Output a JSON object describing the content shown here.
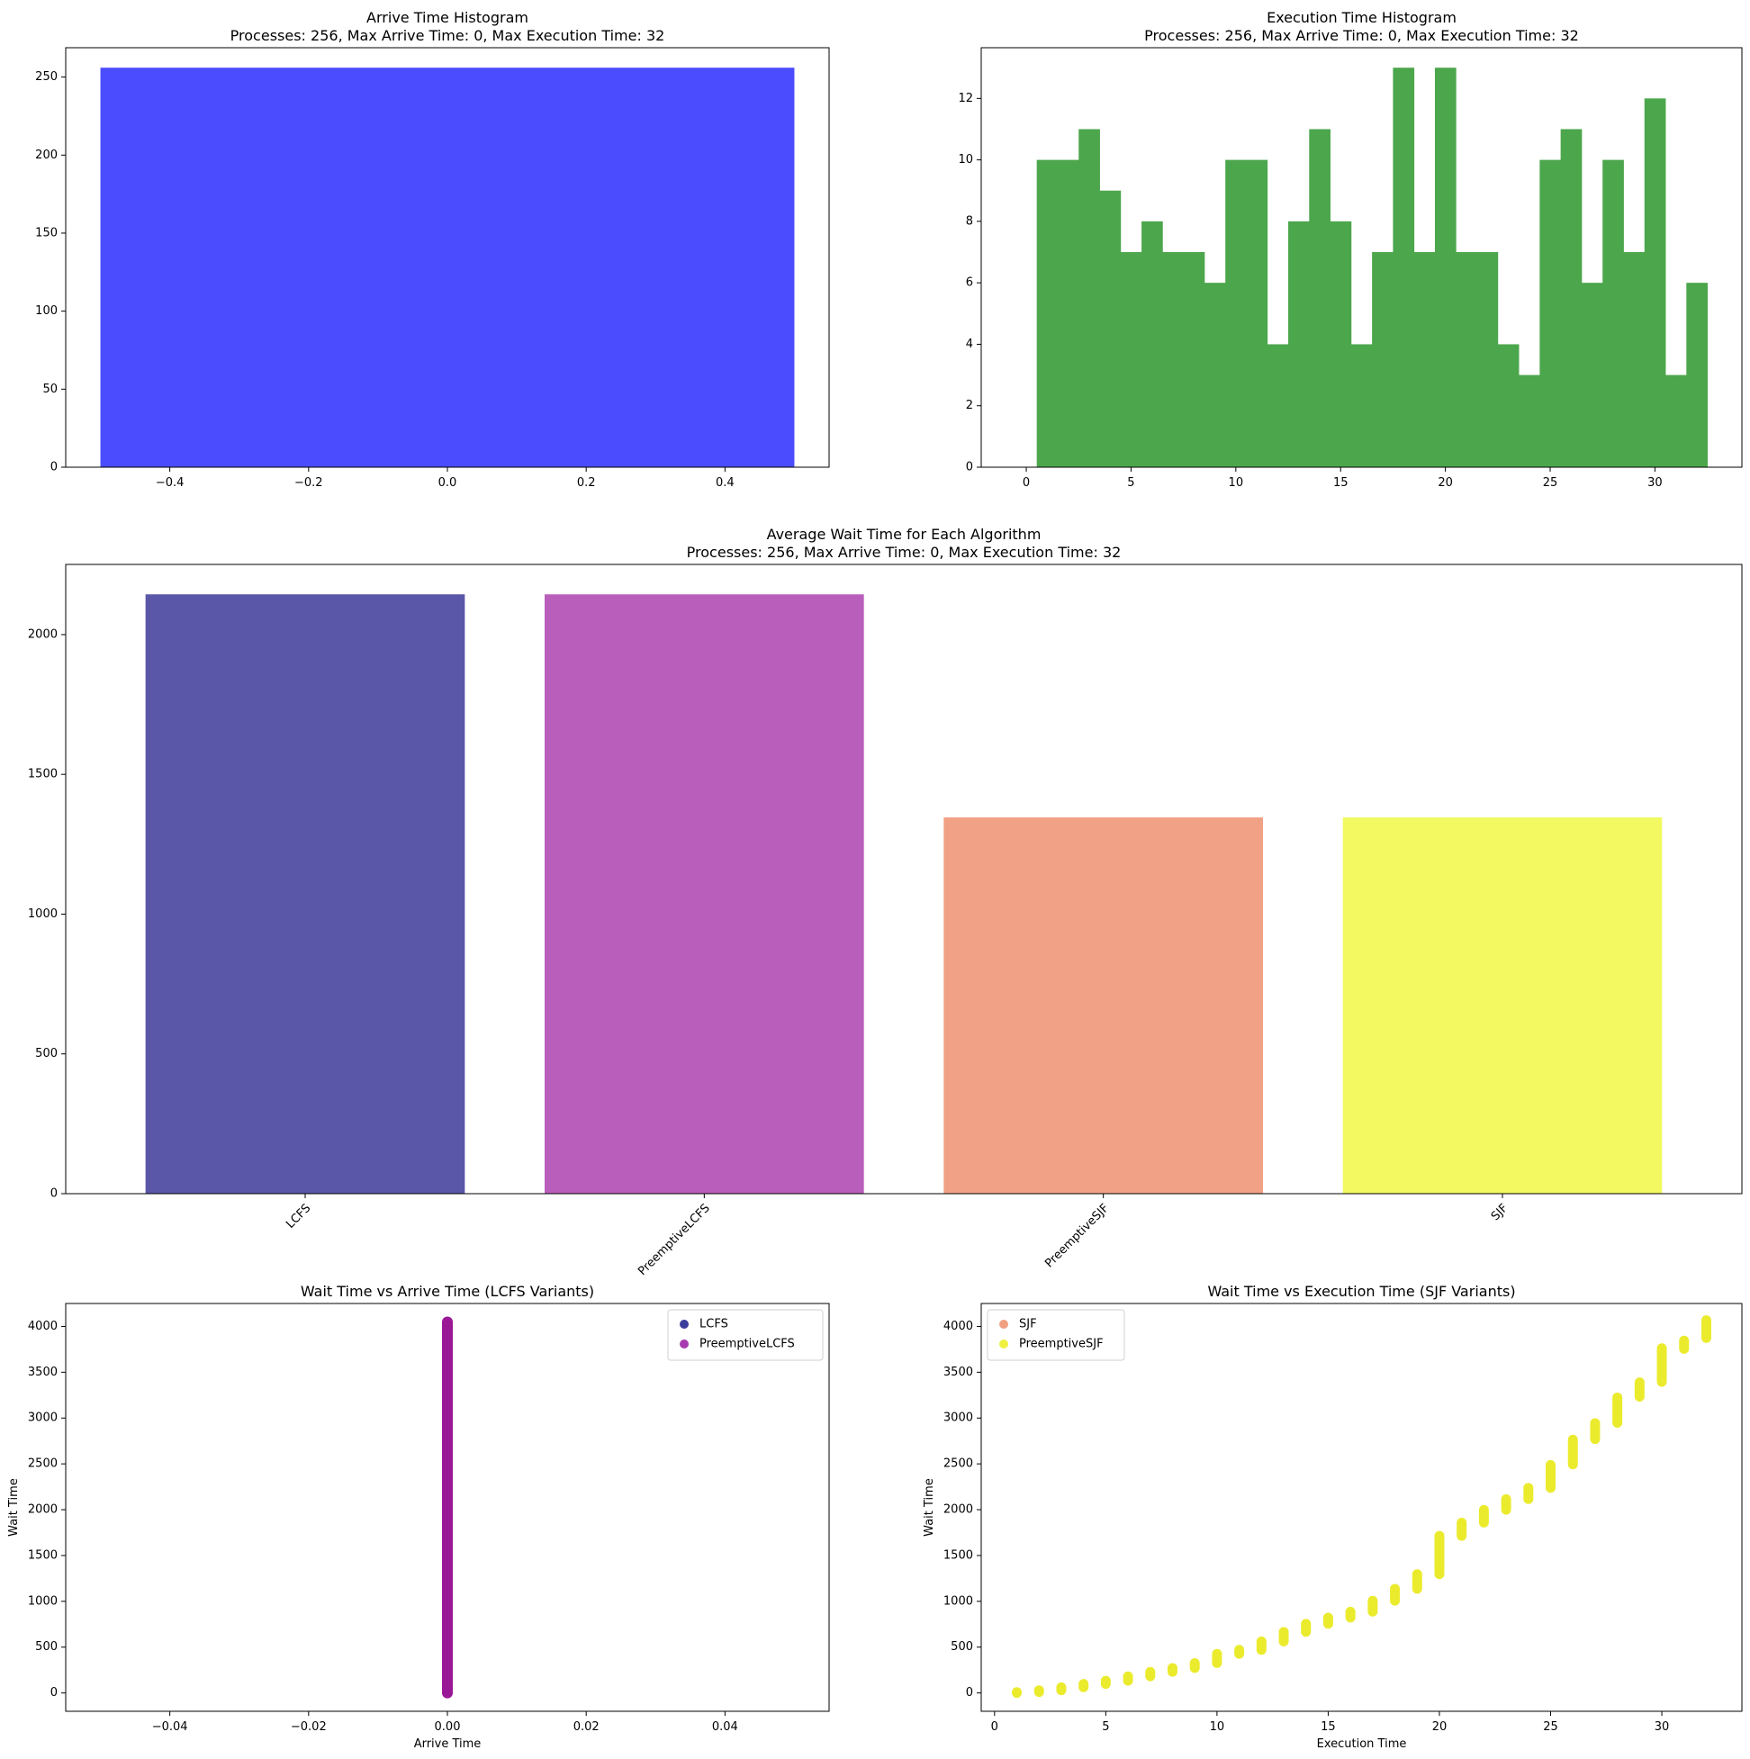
{
  "chart_data": [
    {
      "type": "bar",
      "id": "arrive-hist",
      "title": "Arrive Time Histogram",
      "subtitle": "Processes: 256, Max Arrive Time: 0, Max Execution Time: 32",
      "xlabel": "",
      "ylabel": "",
      "xlim": [
        -0.55,
        0.55
      ],
      "ylim": [
        0,
        268.8
      ],
      "xticks": [
        -0.4,
        -0.2,
        0.0,
        0.2,
        0.4
      ],
      "xtick_labels": [
        "−0.4",
        "−0.2",
        "0.0",
        "0.2",
        "0.4"
      ],
      "yticks": [
        0,
        50,
        100,
        150,
        200,
        250
      ],
      "yticks_labels": [
        "0",
        "50",
        "100",
        "150",
        "200",
        "250"
      ],
      "bins": [
        {
          "x0": -0.5,
          "x1": 0.5,
          "count": 256
        }
      ],
      "color": "#4c4cff",
      "grid": false
    },
    {
      "type": "bar",
      "id": "exec-hist",
      "title": "Execution Time Histogram",
      "subtitle": "Processes: 256, Max Arrive Time: 0, Max Execution Time: 32",
      "xlabel": "",
      "ylabel": "",
      "xlim": [
        -2.15,
        34.15
      ],
      "ylim": [
        0,
        13.65
      ],
      "xticks": [
        0,
        5,
        10,
        15,
        20,
        25,
        30
      ],
      "xtick_labels": [
        "0",
        "5",
        "10",
        "15",
        "20",
        "25",
        "30"
      ],
      "yticks": [
        0,
        2,
        4,
        6,
        8,
        10,
        12
      ],
      "yticks_labels": [
        "0",
        "2",
        "4",
        "6",
        "8",
        "10",
        "12"
      ],
      "bin_start": 0.5,
      "bin_width": 1,
      "counts": [
        10,
        10,
        11,
        9,
        7,
        8,
        7,
        7,
        6,
        10,
        10,
        4,
        8,
        11,
        8,
        4,
        7,
        13,
        7,
        13,
        7,
        7,
        4,
        3,
        10,
        11,
        6,
        10,
        7,
        12,
        3,
        6
      ],
      "color": "#4ca64c",
      "grid": false
    },
    {
      "type": "bar",
      "id": "avg-wait",
      "title": "Average Wait Time for Each Algorithm",
      "subtitle": "Processes: 256, Max Arrive Time: 0, Max Execution Time: 32",
      "xlabel": "",
      "ylabel": "",
      "categories": [
        "LCFS",
        "PreemptiveLCFS",
        "PreemptiveSJF",
        "SJF"
      ],
      "values": [
        2144,
        2144,
        1346,
        1346
      ],
      "colors": [
        "#5a56a8",
        "#ba5ebb",
        "#f1a286",
        "#f2f961"
      ],
      "ylim": [
        0,
        2251
      ],
      "yticks": [
        0,
        500,
        1000,
        1500,
        2000
      ],
      "yticks_labels": [
        "0",
        "500",
        "1000",
        "1500",
        "2000"
      ],
      "grid": false
    },
    {
      "type": "scatter",
      "id": "lcfs-scatter",
      "title": "Wait Time vs Arrive Time (LCFS Variants)",
      "xlabel": "Arrive Time",
      "ylabel": "Wait Time",
      "xlim": [
        -0.055,
        0.055
      ],
      "ylim": [
        -200,
        4250
      ],
      "xticks": [
        -0.04,
        -0.02,
        0.0,
        0.02,
        0.04
      ],
      "xtick_labels": [
        "−0.04",
        "−0.02",
        "0.00",
        "0.02",
        "0.04"
      ],
      "yticks": [
        0,
        500,
        1000,
        1500,
        2000,
        2500,
        3000,
        3500,
        4000
      ],
      "yticks_labels": [
        "0",
        "500",
        "1000",
        "1500",
        "2000",
        "2500",
        "3000",
        "3500",
        "4000"
      ],
      "legend_position": "top-right",
      "series": [
        {
          "name": "LCFS",
          "color": "#3c3c9c",
          "x": 0,
          "y_min": 0,
          "y_max": 4049
        },
        {
          "name": "PreemptiveLCFS",
          "color": "#a83ab0",
          "x": 0,
          "y_min": 0,
          "y_max": 4049
        }
      ],
      "overlap_color": "#9a1896",
      "grid": false
    },
    {
      "type": "scatter",
      "id": "sjf-scatter",
      "title": "Wait Time vs Execution Time (SJF Variants)",
      "xlabel": "Execution Time",
      "ylabel": "Wait Time",
      "xlim": [
        -0.6,
        33.6
      ],
      "ylim": [
        -200,
        4250
      ],
      "xticks": [
        0,
        5,
        10,
        15,
        20,
        25,
        30
      ],
      "xtick_labels": [
        "0",
        "5",
        "10",
        "15",
        "20",
        "25",
        "30"
      ],
      "yticks": [
        0,
        500,
        1000,
        1500,
        2000,
        2500,
        3000,
        3500,
        4000
      ],
      "yticks_labels": [
        "0",
        "500",
        "1000",
        "1500",
        "2000",
        "2500",
        "3000",
        "3500",
        "4000"
      ],
      "legend_position": "top-left",
      "series": [
        {
          "name": "SJF",
          "color": "#f0a080"
        },
        {
          "name": "PreemptiveSJF",
          "color": "#f0f040"
        }
      ],
      "overlap_color": "#ebeb2e",
      "points_x": [
        1,
        2,
        3,
        4,
        5,
        6,
        7,
        8,
        9,
        10,
        11,
        12,
        13,
        14,
        15,
        16,
        17,
        18,
        19,
        20,
        21,
        22,
        23,
        24,
        25,
        26,
        27,
        28,
        29,
        30,
        31,
        32
      ],
      "points_y_min": [
        0,
        10,
        30,
        63,
        99,
        134,
        182,
        231,
        273,
        327,
        427,
        471,
        563,
        667,
        755,
        823,
        888,
        1007,
        1137,
        1297,
        1715,
        1859,
        1999,
        2116,
        2239,
        2494,
        2770,
        2949,
        3233,
        3395,
        3755,
        3875
      ],
      "points_y_max": [
        9,
        29,
        62,
        98,
        133,
        181,
        230,
        272,
        326,
        426,
        470,
        562,
        666,
        754,
        822,
        887,
        1006,
        1136,
        1296,
        1714,
        1858,
        1998,
        2115,
        2238,
        2488,
        2764,
        2944,
        3224,
        3389,
        3761,
        3845,
        4067
      ],
      "grid": false
    }
  ]
}
